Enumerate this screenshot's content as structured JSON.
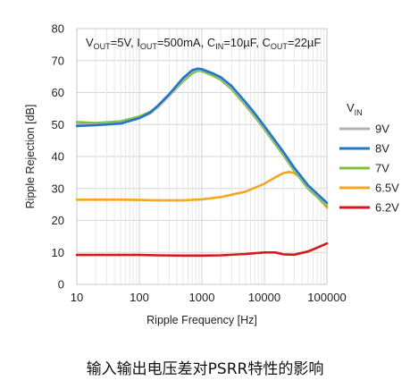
{
  "chart_data": {
    "type": "line",
    "title": "",
    "annotation": {
      "parts": [
        {
          "t": "V"
        },
        {
          "t": "OUT",
          "sub": true
        },
        {
          "t": "=5V, I"
        },
        {
          "t": "OUT",
          "sub": true
        },
        {
          "t": "=500mA, C"
        },
        {
          "t": "IN",
          "sub": true
        },
        {
          "t": "=10µF, C"
        },
        {
          "t": "OUT",
          "sub": true
        },
        {
          "t": "=22µF"
        }
      ]
    },
    "xlabel": "Ripple Frequency [Hz]",
    "ylabel": "Ripple Rejection [dB]",
    "x_scale": "log",
    "xlim": [
      10,
      100000
    ],
    "ylim": [
      0,
      80
    ],
    "x_ticks": [
      10,
      100,
      1000,
      10000,
      100000
    ],
    "x_tick_labels": [
      "10",
      "100",
      "1000",
      "10000",
      "100000"
    ],
    "y_ticks": [
      0,
      10,
      20,
      30,
      40,
      50,
      60,
      70,
      80
    ],
    "y_tick_labels": [
      "0",
      "10",
      "20",
      "30",
      "40",
      "50",
      "60",
      "70",
      "80"
    ],
    "grid": true,
    "legend": {
      "title_main": "V",
      "title_sub": "IN",
      "placement": "right"
    },
    "series": [
      {
        "name": "9V",
        "color": "#b0b0b0",
        "x": [
          10,
          20,
          50,
          100,
          150,
          200,
          300,
          500,
          700,
          850,
          1000,
          1500,
          2000,
          3000,
          5000,
          7000,
          10000,
          20000,
          30000,
          50000,
          100000
        ],
        "y": [
          50,
          50,
          50.5,
          52,
          53.5,
          55.5,
          59,
          64,
          66.5,
          67.2,
          67,
          65.8,
          64.5,
          61.5,
          56.5,
          53,
          49,
          41,
          36,
          30.5,
          25
        ]
      },
      {
        "name": "8V",
        "color": "#1f78c1",
        "x": [
          10,
          20,
          50,
          100,
          150,
          200,
          300,
          500,
          700,
          850,
          1000,
          1500,
          2000,
          3000,
          5000,
          7000,
          10000,
          20000,
          30000,
          50000,
          100000
        ],
        "y": [
          49.5,
          49.8,
          50.3,
          52,
          53.8,
          56,
          59.5,
          64.5,
          67,
          67.5,
          67.3,
          66,
          64.8,
          62,
          57,
          53.5,
          49.5,
          41.5,
          36.5,
          31,
          25.5
        ]
      },
      {
        "name": "7V",
        "color": "#7cc23a",
        "x": [
          10,
          20,
          50,
          100,
          150,
          200,
          300,
          500,
          700,
          850,
          1000,
          1500,
          2000,
          3000,
          5000,
          7000,
          10000,
          20000,
          30000,
          50000,
          100000
        ],
        "y": [
          50.8,
          50.5,
          51,
          52.5,
          54,
          55.8,
          59,
          63.5,
          66,
          66.8,
          66.7,
          65.3,
          64,
          61,
          56,
          52.5,
          48.5,
          40.5,
          35.5,
          30,
          24.5
        ]
      },
      {
        "name": "6.5V",
        "color": "#f5a623",
        "x": [
          10,
          20,
          50,
          100,
          200,
          500,
          1000,
          2000,
          5000,
          10000,
          15000,
          20000,
          25000,
          30000,
          40000,
          60000,
          100000
        ],
        "y": [
          26.5,
          26.5,
          26.5,
          26.4,
          26.3,
          26.3,
          26.6,
          27.3,
          29,
          31.5,
          33.5,
          34.8,
          35.2,
          34.8,
          33,
          29,
          24
        ]
      },
      {
        "name": "6.2V",
        "color": "#d7191c",
        "x": [
          10,
          20,
          50,
          100,
          200,
          500,
          1000,
          2000,
          5000,
          10000,
          15000,
          20000,
          30000,
          50000,
          70000,
          100000
        ],
        "y": [
          9.2,
          9.2,
          9.2,
          9.2,
          9.1,
          9.0,
          9.0,
          9.1,
          9.5,
          10,
          10,
          9.4,
          9.3,
          10.3,
          11.5,
          12.8
        ]
      }
    ]
  },
  "caption": "输入输出电压差对PSRR特性的影响"
}
